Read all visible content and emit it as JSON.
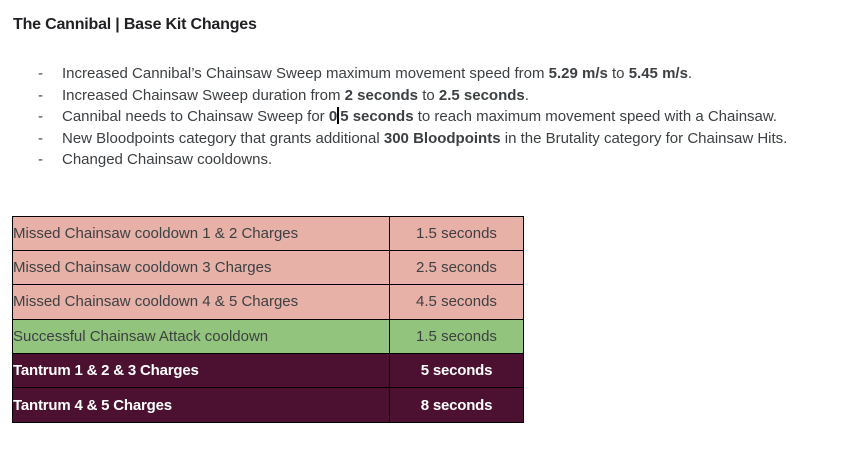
{
  "heading": {
    "text": "The Cannibal | Base Kit Changes"
  },
  "bullets": [
    {
      "marker": "-",
      "segments": {
        "s0": "Increased Cannibal’s Chainsaw Sweep maximum movement speed from ",
        "b1": "5.29 m/s",
        "s2": " to ",
        "b3": "5.45 m/s",
        "s4": "."
      }
    },
    {
      "marker": "-",
      "segments": {
        "s0": "Increased Chainsaw Sweep duration from ",
        "b1": "2 seconds",
        "s2": " to ",
        "b3": "2.5 seconds",
        "s4": "."
      }
    },
    {
      "marker": "-",
      "segments": {
        "s0": "Cannibal needs to Chainsaw Sweep for ",
        "b1": "0",
        "b2": "5 seconds",
        "s3": " to reach maximum movement speed with a Chainsaw."
      }
    },
    {
      "marker": "-",
      "segments": {
        "s0": "New Bloodpoints category that grants additional ",
        "b1": "300 Bloodpoints",
        "s2": " in the Brutality category for Chainsaw Hits."
      }
    },
    {
      "marker": "-",
      "segments": {
        "s0": "Changed Chainsaw cooldowns."
      }
    }
  ],
  "table": {
    "rows": [
      {
        "label": "Missed Chainsaw cooldown 1 & 2 Charges",
        "value": "1.5 seconds",
        "style": "salmon"
      },
      {
        "label": "Missed Chainsaw cooldown 3 Charges",
        "value": "2.5 seconds",
        "style": "salmon"
      },
      {
        "label": "Missed Chainsaw cooldown 4 & 5 Charges",
        "value": "4.5 seconds",
        "style": "salmon"
      },
      {
        "label": "Successful Chainsaw Attack cooldown",
        "value": "1.5 seconds",
        "style": "green"
      },
      {
        "label": "Tantrum 1 & 2 & 3 Charges",
        "value": "5 seconds",
        "style": "dark"
      },
      {
        "label": "Tantrum 4 & 5 Charges",
        "value": "8 seconds",
        "style": "dark"
      }
    ]
  },
  "colors": {
    "salmon": "#e7b1a8",
    "green": "#93c47d",
    "dark_maroon": "#4c1130",
    "dark_row_text": "#ffffff",
    "body_text": "#3c4043",
    "heading_text": "#202124",
    "border": "#000000"
  }
}
